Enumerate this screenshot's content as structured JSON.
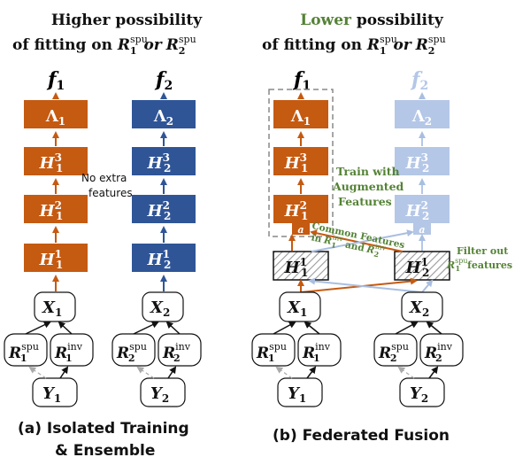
{
  "colors": {
    "orange": "#c55a11",
    "blue": "#2f5597",
    "light_blue": "#b4c7e7",
    "green": "#548235",
    "dark": "#111111",
    "light_arrow": "#a9bee0"
  },
  "left": {
    "title_line1": "Higher possibility",
    "title_line2_prefix": "of fitting on ",
    "title_or": "or",
    "note": [
      "No extra",
      "features"
    ],
    "caption_line1": "(a)  Isolated Training",
    "caption_line2": "& Ensemble"
  },
  "right": {
    "title_word": "Lower",
    "title_line1_rest": " possibility",
    "title_line2_prefix": "of fitting on ",
    "title_or": "or",
    "train_note": [
      "Train with",
      "Augmented",
      "Features"
    ],
    "common_note": [
      "Common Features",
      "in",
      "and"
    ],
    "filter_note": [
      "Filter out",
      "features"
    ],
    "caption": "(b)  Federated Fusion"
  },
  "symbols": {
    "f": "f",
    "H": "H",
    "Lambda": "Λ",
    "X": "X",
    "Y": "Y",
    "R": "R",
    "a": "a",
    "spu": "spu",
    "inv": "inv"
  }
}
